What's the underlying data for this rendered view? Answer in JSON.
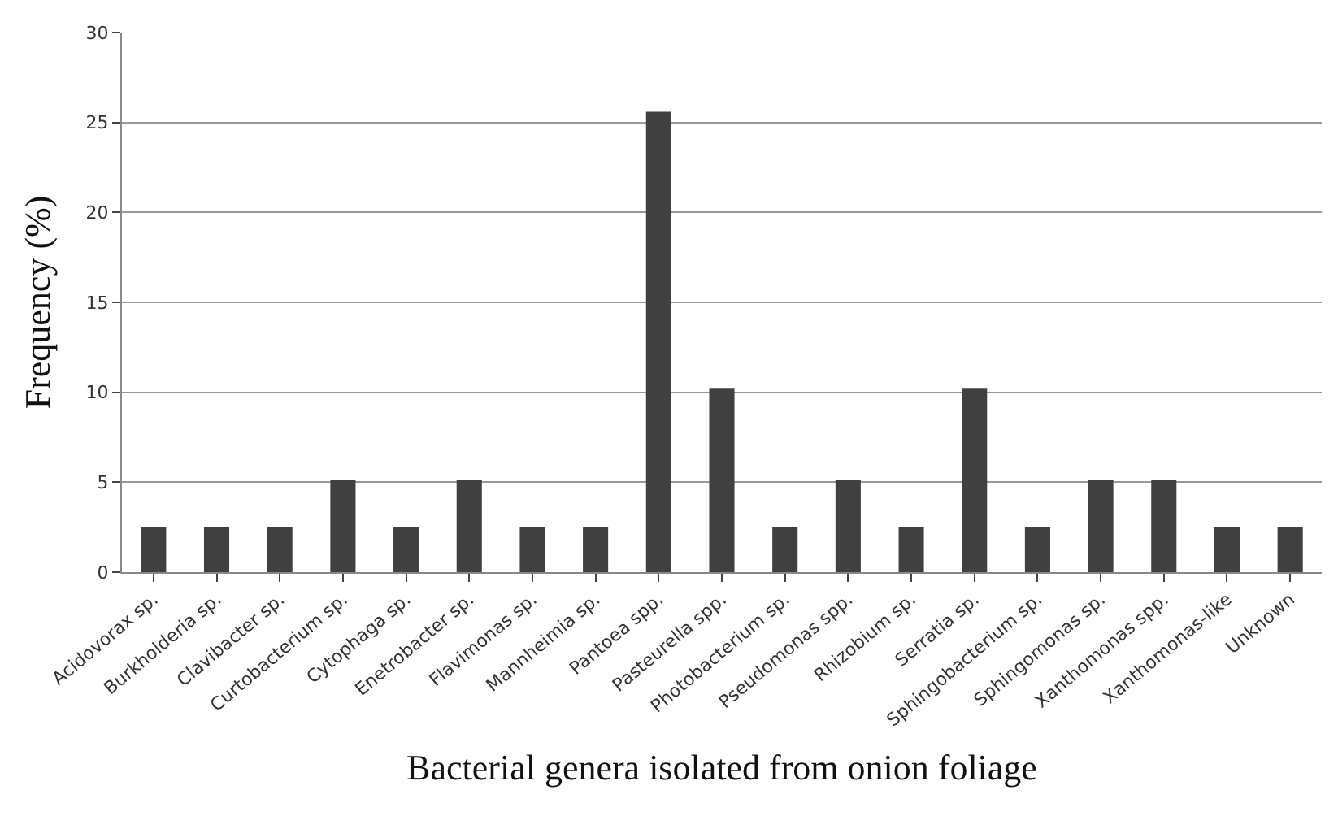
{
  "chart_data": {
    "type": "bar",
    "xlabel": "Bacterial genera isolated from onion foliage",
    "ylabel": "Frequency (%)",
    "categories": [
      "Acidovorax sp.",
      "Burkholderia sp.",
      "Clavibacter sp.",
      "Curtobacterium sp.",
      "Cytophaga sp.",
      "Enetrobacter sp.",
      "Flavimonas sp.",
      "Mannheimia sp.",
      "Pantoea spp.",
      "Pasteurella spp.",
      "Photobacterium sp.",
      "Pseudomonas spp.",
      "Rhizobium sp.",
      "Serratia sp.",
      "Sphingobacterium sp.",
      "Sphingomonas sp.",
      "Xanthomonas spp.",
      "Xanthomonas-like",
      "Unknown"
    ],
    "values": [
      2.5,
      2.5,
      2.5,
      5.1,
      2.5,
      5.1,
      2.5,
      2.5,
      25.6,
      10.2,
      2.5,
      5.1,
      2.5,
      10.2,
      2.5,
      5.1,
      5.1,
      2.5,
      2.5
    ],
    "color": "#404040",
    "ylim": [
      0,
      30
    ],
    "yticks": [
      0,
      5,
      10,
      15,
      20,
      25,
      30
    ],
    "grid": "y"
  }
}
